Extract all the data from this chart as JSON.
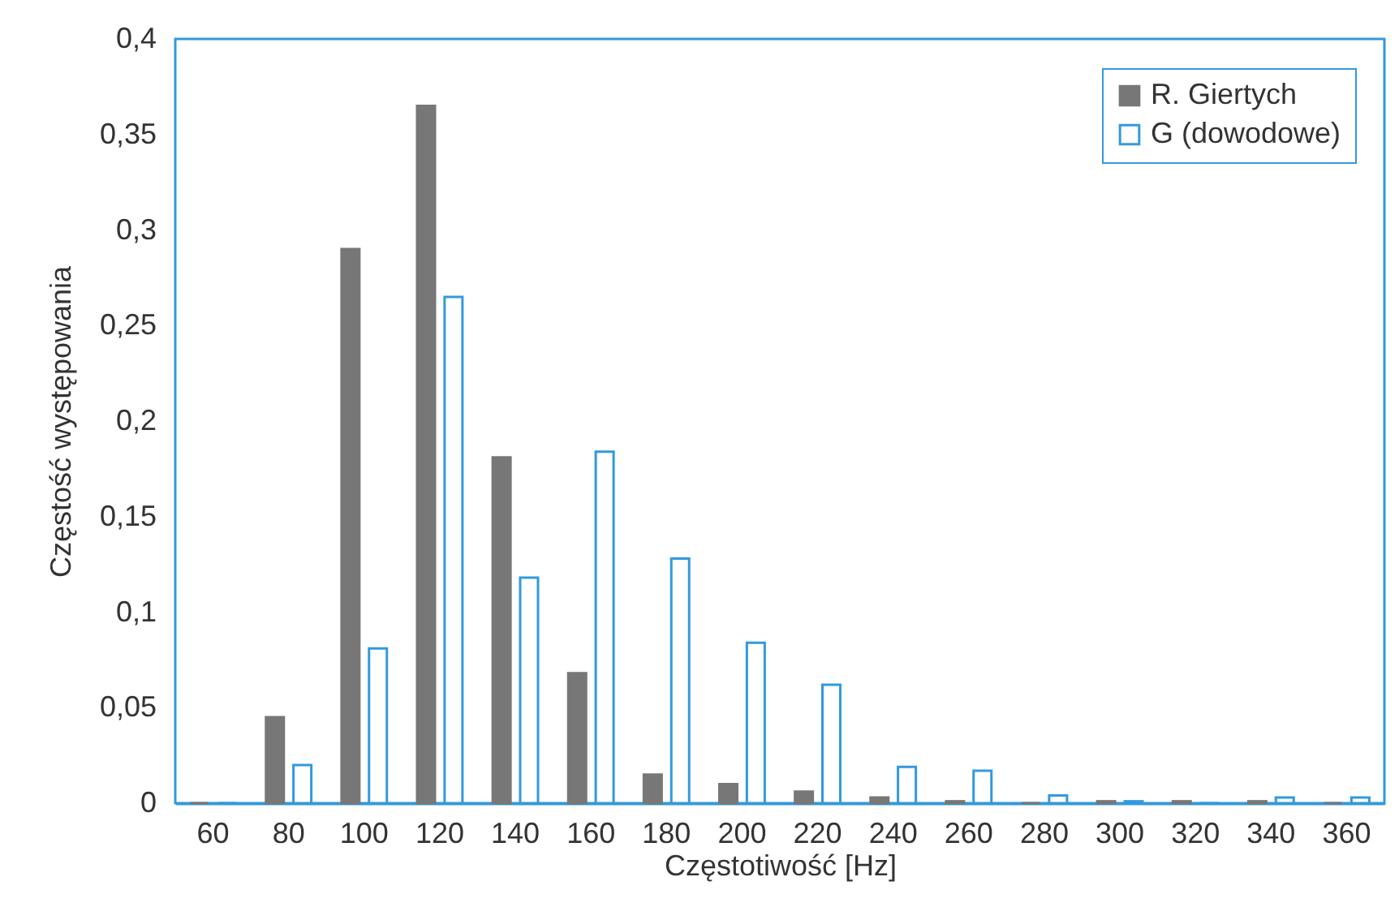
{
  "chart_data": {
    "type": "bar",
    "xlabel": "Częstotiwość [Hz]",
    "ylabel": "Częstość występowania",
    "categories": [
      "60",
      "80",
      "100",
      "120",
      "140",
      "160",
      "180",
      "200",
      "220",
      "240",
      "260",
      "280",
      "300",
      "320",
      "340",
      "360"
    ],
    "series": [
      {
        "name": "R. Giertych",
        "color": "#777777",
        "values": [
          0,
          0.045,
          0.29,
          0.365,
          0.181,
          0.068,
          0.015,
          0.01,
          0.006,
          0.003,
          0.001,
          0,
          0.001,
          0.001,
          0.001,
          0
        ]
      },
      {
        "name": "G (dowodowe)",
        "color": "#3399dd",
        "values": [
          0,
          0.02,
          0.081,
          0.265,
          0.118,
          0.184,
          0.128,
          0.084,
          0.062,
          0.019,
          0.017,
          0.004,
          0.001,
          0,
          0.003,
          0.003
        ]
      }
    ],
    "ylim": [
      0,
      0.4
    ],
    "yticks": [
      {
        "value": 0,
        "label": "0"
      },
      {
        "value": 0.05,
        "label": "0,05"
      },
      {
        "value": 0.1,
        "label": "0,1"
      },
      {
        "value": 0.15,
        "label": "0,15"
      },
      {
        "value": 0.2,
        "label": "0,2"
      },
      {
        "value": 0.25,
        "label": "0,25"
      },
      {
        "value": 0.3,
        "label": "0,3"
      },
      {
        "value": 0.35,
        "label": "0,35"
      },
      {
        "value": 0.4,
        "label": "0,4"
      }
    ],
    "legend": "top right",
    "grid": false
  }
}
